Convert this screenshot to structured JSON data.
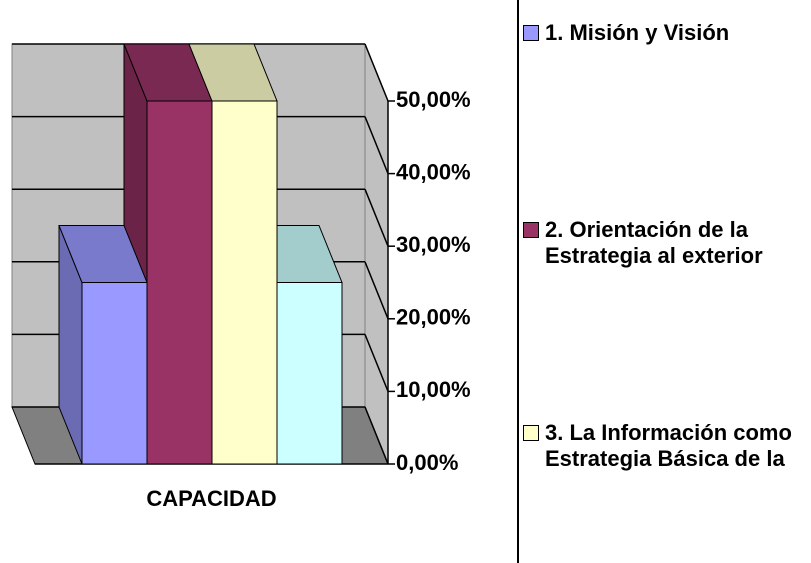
{
  "chart_data": {
    "type": "bar3d",
    "categories": [
      "CAPACIDAD"
    ],
    "series": [
      {
        "name": "1. Misión y Visión",
        "color": "#9999ff",
        "values": [
          25
        ]
      },
      {
        "name": "2. Orientación de la Estrategia al exterior",
        "color": "#993366",
        "values": [
          50
        ]
      },
      {
        "name": "3. La Información como Estrategia Básica de la",
        "color": "#ffffcc",
        "values": [
          50
        ]
      },
      {
        "color": "#ccffff",
        "values": [
          25
        ]
      }
    ],
    "ylim": [
      0,
      50
    ],
    "yticks": [
      {
        "value": 0,
        "label": "0,00%"
      },
      {
        "value": 10,
        "label": "10,00%"
      },
      {
        "value": 20,
        "label": "20,00%"
      },
      {
        "value": 30,
        "label": "30,00%"
      },
      {
        "value": 40,
        "label": "40,00%"
      },
      {
        "value": 50,
        "label": "50,00%"
      }
    ],
    "grid": true,
    "legend": "right"
  }
}
